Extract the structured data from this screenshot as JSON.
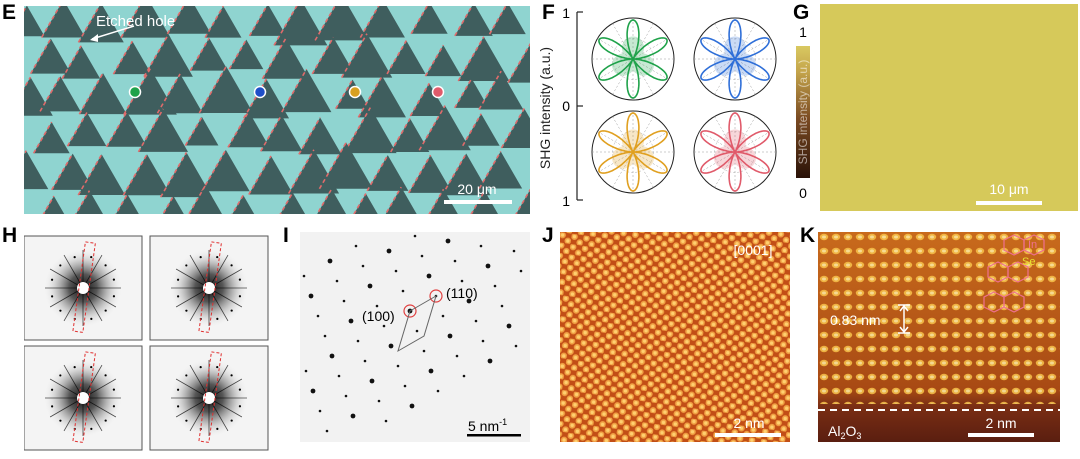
{
  "panel_labels": {
    "e": "E",
    "f": "F",
    "g": "G",
    "h": "H",
    "i": "I",
    "j": "J",
    "k": "K"
  },
  "panel_e": {
    "annotation": "Etched hole",
    "scale_bar": "20 μm",
    "dot_colors": [
      "#1fa24a",
      "#1f4fc8",
      "#d8a020",
      "#e05a6a"
    ]
  },
  "panel_f": {
    "y_label": "SHG intensity (a.u.)",
    "tick_top": "1",
    "tick_mid": "0",
    "tick_bottom": "1",
    "colors": [
      "#1fa24a",
      "#2f6fd8",
      "#e0a020",
      "#e05a6a"
    ]
  },
  "panel_g": {
    "colorbar_label": "SHG intensity (a.u.)",
    "colorbar_max": "1",
    "colorbar_min": "0",
    "scale_bar": "10 μm",
    "fill_color": "#d6c95a"
  },
  "panel_i": {
    "spot_100": "(100)",
    "spot_110": "(110)",
    "scale_bar": "5 nm",
    "scale_bar_exp": "-1"
  },
  "panel_j": {
    "zone_axis": "[0001]",
    "scale_bar": "2 nm"
  },
  "panel_k": {
    "spacing": "0.83 nm",
    "substrate": "Al",
    "substrate_sub2": "2",
    "substrate_o": "O",
    "substrate_sub3": "3",
    "scale_bar": "2 nm",
    "atom_in": "In",
    "atom_se": "Se"
  }
}
